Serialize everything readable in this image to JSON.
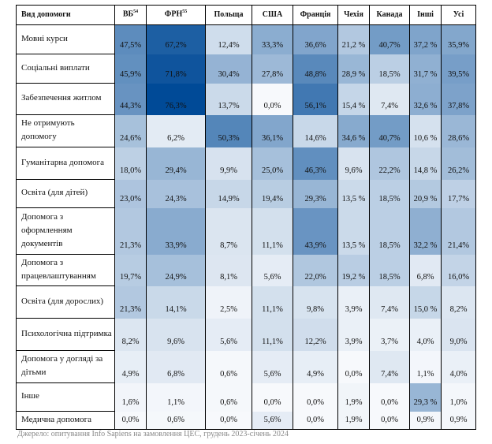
{
  "chart_data": {
    "type": "heatmap",
    "columns": [
      {
        "label": "Вид допомоги"
      },
      {
        "label": "ВБ",
        "sup": "54"
      },
      {
        "label": "ФРН",
        "sup": "55"
      },
      {
        "label": "Польща"
      },
      {
        "label": "США"
      },
      {
        "label": "Франція"
      },
      {
        "label": "Чехія"
      },
      {
        "label": "Канада"
      },
      {
        "label": "Інші"
      },
      {
        "label": "Усі"
      }
    ],
    "rows": [
      {
        "label": "Мовні курси",
        "values": [
          "47,5%",
          "67,2%",
          "12,4%",
          "33,3%",
          "36,6%",
          "21,2 %",
          "40,7%",
          "37,2 %",
          "35,9%"
        ]
      },
      {
        "label": "Соціальні виплати",
        "values": [
          "45,9%",
          "71,8%",
          "30,4%",
          "27,8%",
          "48,8%",
          "28,9 %",
          "18,5%",
          "31,7 %",
          "39,5%"
        ]
      },
      {
        "label": "Забезпечення житлом",
        "values": [
          "44,3%",
          "76,3%",
          "13,7%",
          "0,0%",
          "56,1%",
          "15,4 %",
          "7,4%",
          "32,6 %",
          "37,8%"
        ]
      },
      {
        "label": "Не отримують допомогу",
        "values": [
          "24,6%",
          "6,2%",
          "50,3%",
          "36,1%",
          "14,6%",
          "34,6 %",
          "40,7%",
          "10,6 %",
          "28,6%"
        ]
      },
      {
        "label": "Гуманітарна допомога",
        "values": [
          "18,0%",
          "29,4%",
          "9,9%",
          "25,0%",
          "46,3%",
          "9,6%",
          "22,2%",
          "14,8 %",
          "26,2%"
        ]
      },
      {
        "label": "Освіта (для дітей)",
        "values": [
          "23,0%",
          "24,3%",
          "14,9%",
          "19,4%",
          "29,3%",
          "13,5 %",
          "18,5%",
          "20,9 %",
          "17,7%"
        ]
      },
      {
        "label": "Допомога з оформленням документів",
        "values": [
          "21,3%",
          "33,9%",
          "8,7%",
          "11,1%",
          "43,9%",
          "13,5 %",
          "18,5%",
          "32,2 %",
          "21,4%"
        ]
      },
      {
        "label": "Допомога з працевлаштуванням",
        "values": [
          "19,7%",
          "24,9%",
          "8,1%",
          "5,6%",
          "22,0%",
          "19,2 %",
          "18,5%",
          "6,8%",
          "16,0%"
        ]
      },
      {
        "label": "Освіта (для дорослих)",
        "values": [
          "21,3%",
          "14,1%",
          "2,5%",
          "11,1%",
          "9,8%",
          "3,9%",
          "7,4%",
          "15,0 %",
          "8,2%"
        ]
      },
      {
        "label": "Психологічна підтримка",
        "values": [
          "8,2%",
          "9,6%",
          "5,6%",
          "11,1%",
          "12,2%",
          "3,9%",
          "3,7%",
          "4,0%",
          "9,0%"
        ]
      },
      {
        "label": "Допомога у догляді за дітьми",
        "values": [
          "4,9%",
          "6,8%",
          "0,6%",
          "5,6%",
          "4,9%",
          "0,0%",
          "7,4%",
          "1,1%",
          "4,0%"
        ]
      },
      {
        "label": "Інше",
        "values": [
          "1,6%",
          "1,1%",
          "0,6%",
          "0,0%",
          "0,0%",
          "1,9%",
          "0,0%",
          "29,3 %",
          "1,0%"
        ]
      },
      {
        "label": "Медична допомога",
        "values": [
          "0,0%",
          "0,6%",
          "0,0%",
          "5,6%",
          "0,0%",
          "1,9%",
          "0,0%",
          "0,9%",
          "0,9%"
        ]
      }
    ],
    "color_scale": {
      "low": "#f7f9fc",
      "high": "#004a97"
    }
  },
  "source": "Джерело: опитування Info Sapiens на замовлення ЦЕС, грудень 2023-січень 2024"
}
